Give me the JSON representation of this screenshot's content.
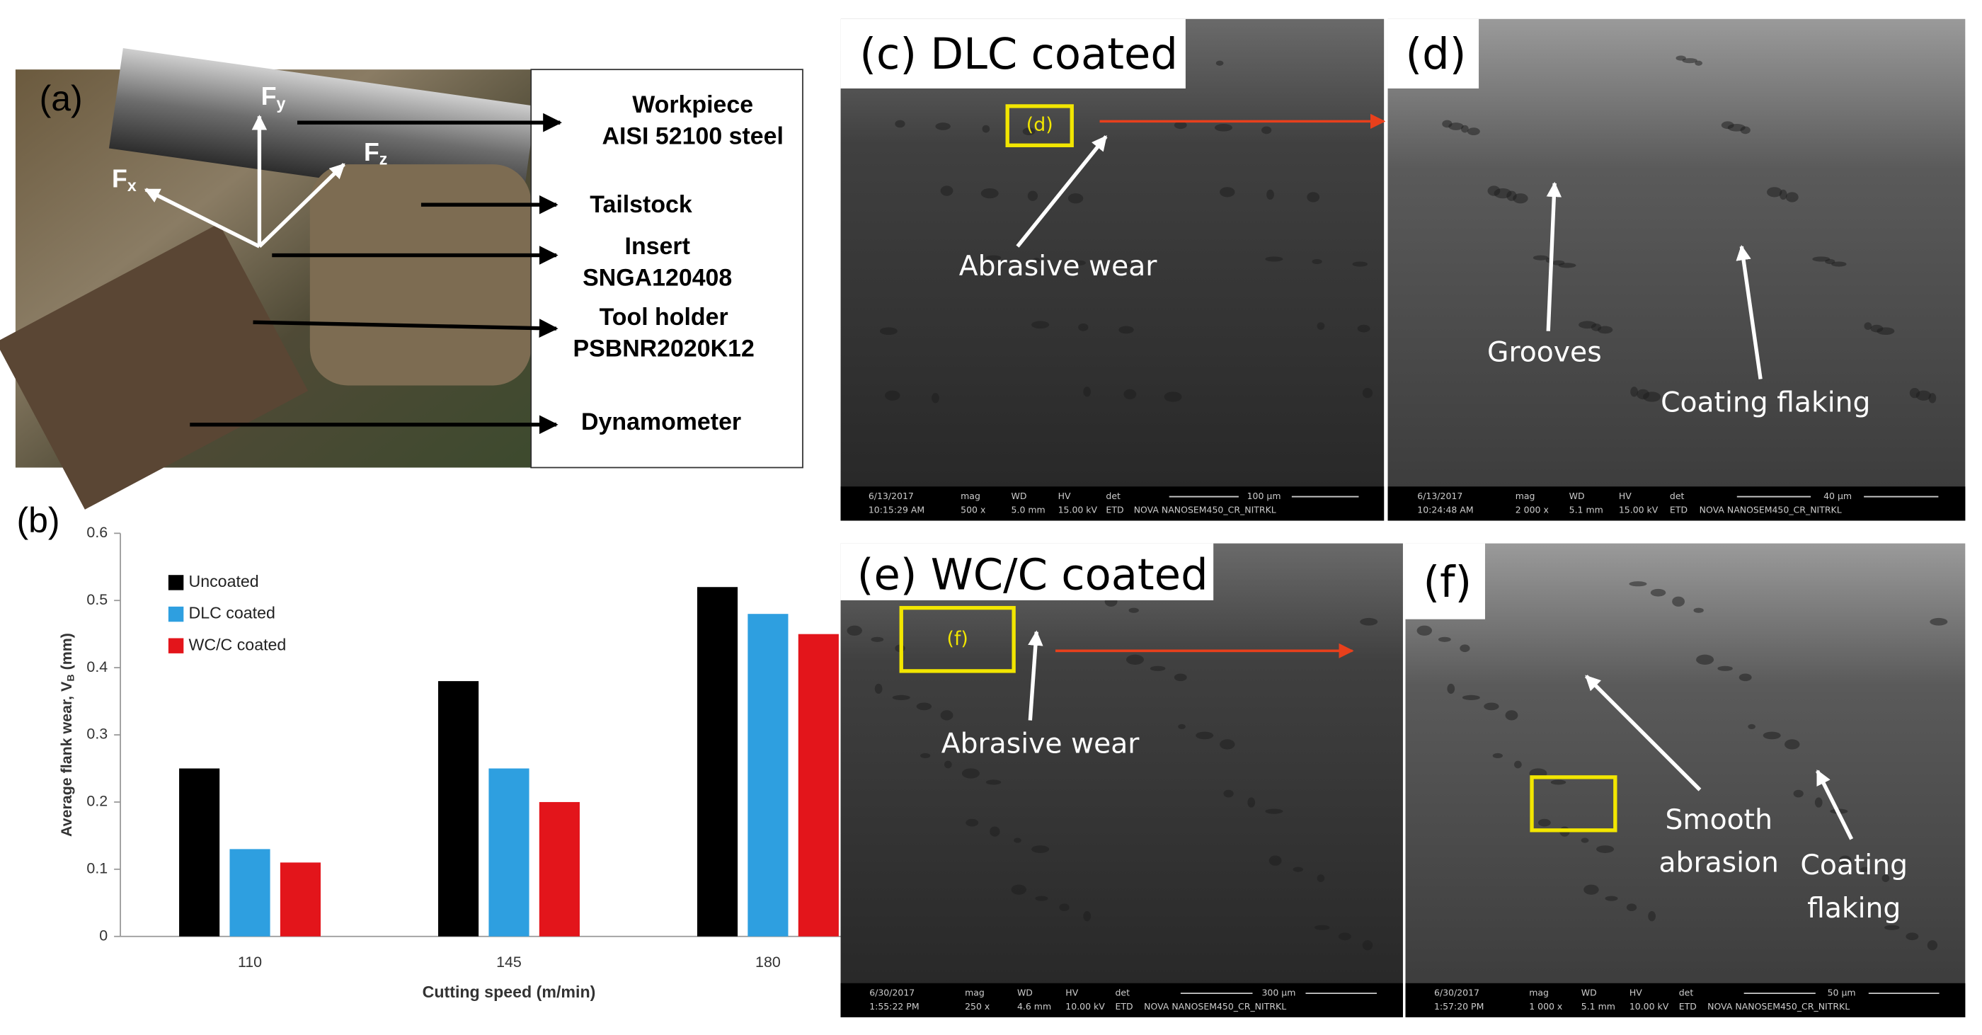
{
  "figure": {
    "panel_a": {
      "label": "(a)",
      "forces": [
        {
          "main": "F",
          "sub": "x"
        },
        {
          "main": "F",
          "sub": "y"
        },
        {
          "main": "F",
          "sub": "z"
        }
      ],
      "callouts": [
        [
          "Workpiece",
          "AISI 52100 steel"
        ],
        [
          "Tailstock"
        ],
        [
          "Insert",
          "SNGA120408"
        ],
        [
          "Tool holder",
          "PSBNR2020K12"
        ],
        [
          "Dynamometer"
        ]
      ]
    },
    "panel_b": {
      "label": "(b)"
    },
    "sem_header": [
      "mag",
      "WD",
      "HV",
      "det"
    ],
    "sem_panels": [
      {
        "label": "(c) DLC coated",
        "inset_label": "(d)",
        "annotations": [
          [
            "Abrasive wear"
          ]
        ],
        "info": {
          "date": "6/13/2017",
          "time": "10:15:29 AM",
          "mag": "500 x",
          "wd": "5.0 mm",
          "hv": "15.00 kV",
          "det": "ETD",
          "instrument": "NOVA NANOSEM450_CR_NITRKL",
          "scale": "100 μm"
        }
      },
      {
        "label": "(d)",
        "annotations": [
          [
            "Grooves"
          ],
          [
            "Coating flaking"
          ]
        ],
        "info": {
          "date": "6/13/2017",
          "time": "10:24:48 AM",
          "mag": "2 000 x",
          "wd": "5.1 mm",
          "hv": "15.00 kV",
          "det": "ETD",
          "instrument": "NOVA NANOSEM450_CR_NITRKL",
          "scale": "40 μm"
        }
      },
      {
        "label": "(e) WC/C coated",
        "inset_label": "(f)",
        "annotations": [
          [
            "Abrasive wear"
          ]
        ],
        "info": {
          "date": "6/30/2017",
          "time": "1:55:22 PM",
          "mag": "250 x",
          "wd": "4.6 mm",
          "hv": "10.00 kV",
          "det": "ETD",
          "instrument": "NOVA NANOSEM450_CR_NITRKL",
          "scale": "300 μm"
        }
      },
      {
        "label": "(f)",
        "annotations": [
          [
            "Smooth",
            "abrasion"
          ],
          [
            "Coating",
            "flaking"
          ]
        ],
        "info": {
          "date": "6/30/2017",
          "time": "1:57:20 PM",
          "mag": "1 000 x",
          "wd": "5.1 mm",
          "hv": "10.00 kV",
          "det": "ETD",
          "instrument": "NOVA NANOSEM450_CR_NITRKL",
          "scale": "50 μm"
        }
      }
    ]
  },
  "chart_data": {
    "type": "bar",
    "x_label": "Cutting speed (m/min)",
    "y_label": {
      "main": "Average flank wear, V",
      "sub": "B",
      "unit": " (mm)"
    },
    "categories": [
      "110",
      "145",
      "180"
    ],
    "series": [
      {
        "name": "Uncoated",
        "color": "#000000",
        "values": [
          0.25,
          0.38,
          0.52
        ]
      },
      {
        "name": "DLC coated",
        "color": "#2e9fe0",
        "values": [
          0.13,
          0.25,
          0.48
        ]
      },
      {
        "name": "WC/C coated",
        "color": "#e3151b",
        "values": [
          0.11,
          0.2,
          0.45
        ]
      }
    ],
    "ylim": [
      0,
      0.6
    ],
    "yticks": [
      0,
      0.1,
      0.2,
      0.3,
      0.4,
      0.5,
      0.6
    ],
    "legend": "upper left",
    "grid": false
  }
}
